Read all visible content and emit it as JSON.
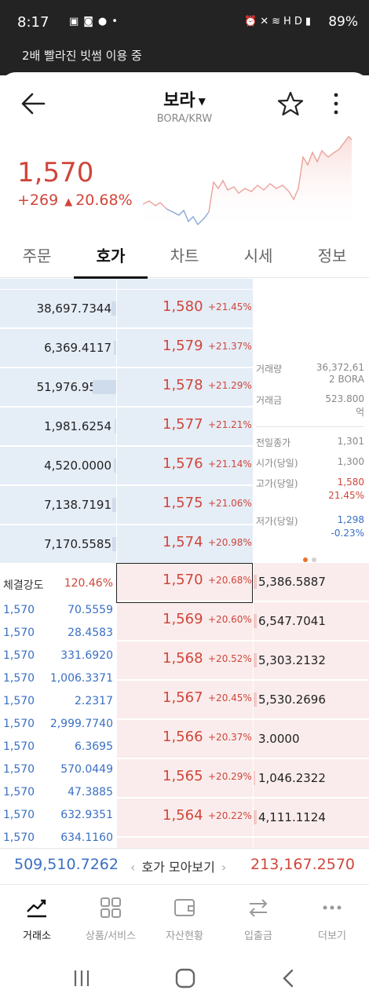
{
  "status_bar": {
    "time": "8:17",
    "battery": "89%",
    "left_icons": [
      "image-icon",
      "talk-icon",
      "chat-icon",
      "dot-icon"
    ],
    "right_icons": [
      "alarm-icon",
      "mute-icon",
      "wifi-icon",
      "hd-voice-icon",
      "signal-icon"
    ]
  },
  "banner": "2배 빨라진 빗썸 이용 중",
  "header": {
    "coin_name": "보라",
    "pair": "BORA/KRW"
  },
  "price": {
    "current": "1,570",
    "change_abs": "+269",
    "change_pct": "20.68%",
    "color": "#d0463a"
  },
  "tabs": [
    {
      "label": "주문",
      "active": false
    },
    {
      "label": "호가",
      "active": true
    },
    {
      "label": "차트",
      "active": false
    },
    {
      "label": "시세",
      "active": false
    },
    {
      "label": "정보",
      "active": false
    }
  ],
  "orderbook": {
    "asks": [
      {
        "qty": "38,697.7344",
        "price": "1,580",
        "pct": "+21.45%"
      },
      {
        "qty": "6,369.4117",
        "price": "1,579",
        "pct": "+21.37%"
      },
      {
        "qty": "51,976.9551",
        "price": "1,578",
        "pct": "+21.29%"
      },
      {
        "qty": "1,981.6254",
        "price": "1,577",
        "pct": "+21.21%"
      },
      {
        "qty": "4,520.0000",
        "price": "1,576",
        "pct": "+21.14%"
      },
      {
        "qty": "7,138.7191",
        "price": "1,575",
        "pct": "+21.06%"
      },
      {
        "qty": "7,170.5585",
        "price": "1,574",
        "pct": "+20.98%"
      }
    ],
    "bids": [
      {
        "qty": "5,386.5887",
        "price": "1,570",
        "pct": "+20.68%"
      },
      {
        "qty": "6,547.7041",
        "price": "1,569",
        "pct": "+20.60%"
      },
      {
        "qty": "5,303.2132",
        "price": "1,568",
        "pct": "+20.52%"
      },
      {
        "qty": "5,530.2696",
        "price": "1,567",
        "pct": "+20.45%"
      },
      {
        "qty": "3.0000",
        "price": "1,566",
        "pct": "+20.37%"
      },
      {
        "qty": "1,046.2322",
        "price": "1,565",
        "pct": "+20.29%"
      },
      {
        "qty": "4,111.1124",
        "price": "1,564",
        "pct": "+20.22%"
      }
    ]
  },
  "stats": {
    "volume_label": "거래량",
    "volume_value": "36,372,61",
    "volume_unit": "2 BORA",
    "amount_label": "거래금",
    "amount_value": "523.800",
    "amount_unit": "억",
    "prev_close_label": "전일종가",
    "prev_close": "1,301",
    "open_label": "시가(당일)",
    "open": "1,300",
    "high_label": "고가(당일)",
    "high": "1,580",
    "high_pct": "21.45%",
    "low_label": "저가(당일)",
    "low": "1,298",
    "low_pct": "-0.23%",
    "page_dots": {
      "active_color": "#e8732c",
      "inactive_color": "#d0d0d0"
    }
  },
  "trades": {
    "strength_label": "체결강도",
    "strength_value": "120.46%",
    "rows": [
      {
        "price": "1,570",
        "qty": "70.5559"
      },
      {
        "price": "1,570",
        "qty": "28.4583"
      },
      {
        "price": "1,570",
        "qty": "331.6920"
      },
      {
        "price": "1,570",
        "qty": "1,006.3371"
      },
      {
        "price": "1,570",
        "qty": "2.2317"
      },
      {
        "price": "1,570",
        "qty": "2,999.7740"
      },
      {
        "price": "1,570",
        "qty": "6.3695"
      },
      {
        "price": "1,570",
        "qty": "570.0449"
      },
      {
        "price": "1,570",
        "qty": "47.3885"
      },
      {
        "price": "1,570",
        "qty": "632.9351"
      },
      {
        "price": "1,570",
        "qty": "634.1160"
      }
    ]
  },
  "summary": {
    "ask_total": "509,510.7262",
    "middle_label": "호가 모아보기",
    "bid_total": "213,167.2570"
  },
  "bottom_nav": [
    {
      "label": "거래소",
      "icon": "trend-chart-icon",
      "active": true
    },
    {
      "label": "상품/서비스",
      "icon": "grid-icon",
      "active": false
    },
    {
      "label": "자산현황",
      "icon": "wallet-icon",
      "active": false
    },
    {
      "label": "입출금",
      "icon": "transfer-icon",
      "active": false
    },
    {
      "label": "더보기",
      "icon": "more-dots-icon",
      "active": false
    }
  ],
  "system_nav": [
    "recents-icon",
    "home-icon",
    "back-icon"
  ],
  "colors": {
    "up": "#d0463a",
    "down": "#3a6fc4",
    "ask_bg": "#e5edf7",
    "bid_bg": "#faecec"
  }
}
